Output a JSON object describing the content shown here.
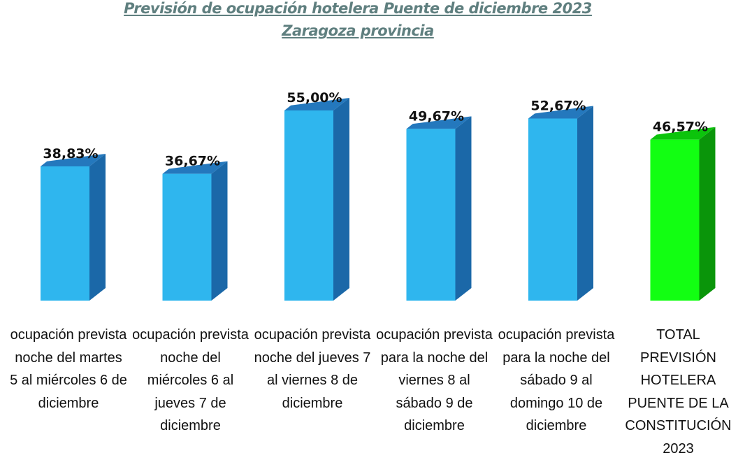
{
  "chart_data": {
    "type": "bar",
    "title": "Previsión de ocupación hotelera Puente de diciembre 2023",
    "subtitle": "Zaragoza provincia",
    "categories": [
      "ocupación prevista noche del martes 5 al miércoles 6 de diciembre",
      "ocupación prevista noche del miércoles 6 al jueves 7 de diciembre",
      "ocupación prevista noche del jueves 7 al viernes 8 de diciembre",
      "ocupación prevista para la noche del viernes 8 al sábado 9 de diciembre",
      "ocupación prevista para la noche del sábado 9 al domingo 10 de diciembre",
      "TOTAL PREVISIÓN HOTELERA PUENTE DE LA CONSTITUCIÓN 2023"
    ],
    "values": [
      38.83,
      36.67,
      55.0,
      49.67,
      52.67,
      46.57
    ],
    "data_labels": [
      "38,83%",
      "36,67%",
      "55,00%",
      "49,67%",
      "52,67%",
      "46,57%"
    ],
    "unit": "%",
    "ylim": [
      0,
      60
    ],
    "grid": false,
    "style": "3d-column",
    "colors": {
      "bar": "#2fb6ee",
      "bar_side": "#1b68a8",
      "bar_top": "#2478bd",
      "total": "#12ff12",
      "total_side": "#0a950a",
      "total_top": "#0cc40c",
      "title": "#5f7f7f"
    }
  }
}
